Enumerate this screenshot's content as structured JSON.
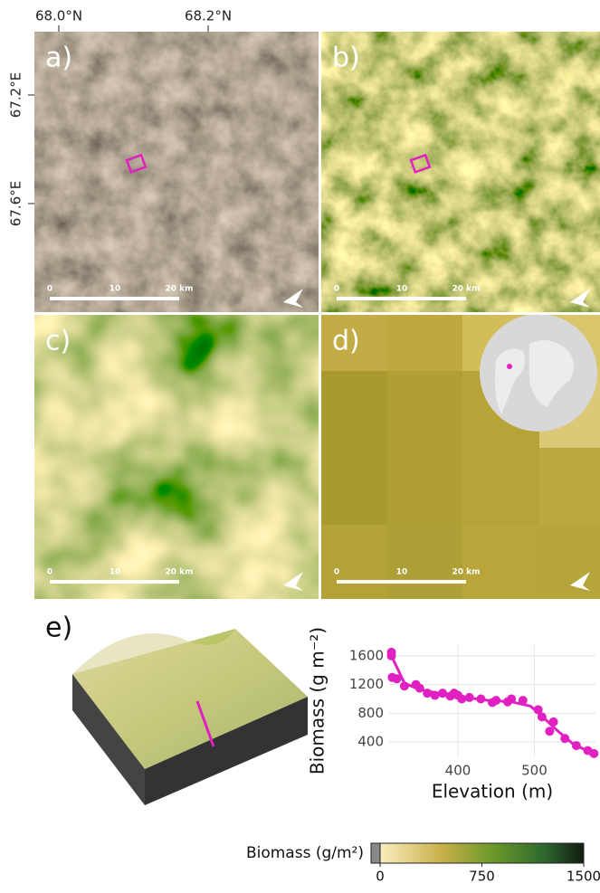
{
  "figure": {
    "top_ticks": [
      "68.0°N",
      "68.2°N"
    ],
    "left_ticks": [
      "67.2°E",
      "67.6°E"
    ]
  },
  "panels": [
    {
      "label": "a)",
      "scale_labels": [
        "0",
        "10",
        "20 km"
      ]
    },
    {
      "label": "b)",
      "scale_labels": [
        "0",
        "10",
        "20 km"
      ]
    },
    {
      "label": "c)",
      "scale_labels": [
        "0",
        "10",
        "20 km"
      ]
    },
    {
      "label": "d)",
      "scale_labels": [
        "0",
        "10",
        "20 km"
      ]
    },
    {
      "label": "e)"
    }
  ],
  "chart_data": {
    "type": "scatter",
    "x_label": "Elevation (m)",
    "y_label": "Biomass (g m⁻²)",
    "xlim": [
      310,
      580
    ],
    "ylim": [
      200,
      1750
    ],
    "xticks": [
      400,
      500
    ],
    "yticks": [
      400,
      800,
      1200,
      1600
    ],
    "grid": true,
    "color": "#e020c0",
    "x": [
      313,
      313,
      314,
      320,
      330,
      345,
      350,
      360,
      370,
      380,
      390,
      395,
      400,
      405,
      415,
      430,
      445,
      450,
      465,
      470,
      485,
      505,
      510,
      520,
      525,
      540,
      555,
      570,
      578
    ],
    "values": [
      1650,
      1600,
      1300,
      1280,
      1180,
      1200,
      1150,
      1080,
      1050,
      1080,
      1040,
      1080,
      1050,
      1000,
      1020,
      1000,
      950,
      980,
      960,
      1000,
      980,
      850,
      750,
      550,
      680,
      450,
      350,
      280,
      240
    ],
    "fit": {
      "x": [
        313,
        330,
        350,
        380,
        410,
        440,
        470,
        495,
        510,
        530,
        550,
        578
      ],
      "values": [
        1600,
        1220,
        1130,
        1070,
        1020,
        980,
        960,
        900,
        760,
        560,
        380,
        230
      ]
    }
  },
  "colorbar": {
    "title": "Biomass (g/m²)",
    "lim": [
      0,
      1500
    ],
    "ticks": [
      0,
      750,
      1500
    ]
  }
}
